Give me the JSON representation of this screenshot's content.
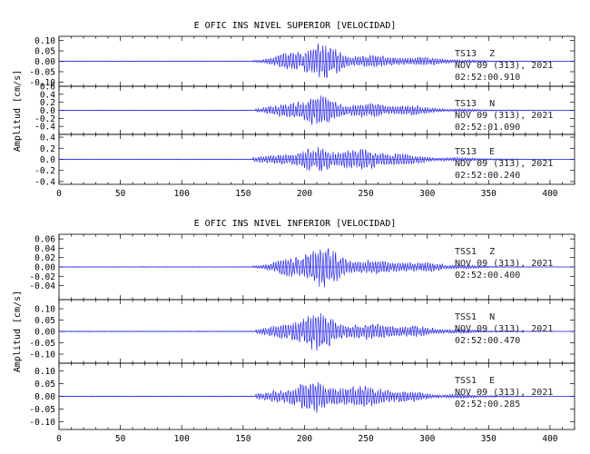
{
  "chart_data": [
    {
      "type": "line",
      "title": "E OFIC INS NIVEL SUPERIOR [VELOCIDAD]",
      "ylabel": "Amplitud [cm/s]",
      "xlabel": "",
      "xlim": [
        0,
        420
      ],
      "xticks": [
        "0",
        "50",
        "100",
        "150",
        "200",
        "250",
        "300",
        "350",
        "400"
      ],
      "grid": false,
      "color": "#1414e6",
      "panels": [
        {
          "name": "TS13 Z",
          "station": "TS13",
          "component": "Z",
          "date": "NOV 09 (313), 2021",
          "time": "02:52:00.910",
          "ylim": [
            -0.12,
            0.12
          ],
          "yticks": [
            "0.10",
            "0.05",
            "0.00",
            "-0.05",
            "-0.10"
          ],
          "onset": 158,
          "peak_x": 210,
          "peak_amp": 0.11
        },
        {
          "name": "TS13 N",
          "station": "TS13",
          "component": "N",
          "date": "NOV 09 (313), 2021",
          "time": "02:52:01.090",
          "ylim": [
            -0.6,
            0.6
          ],
          "yticks": [
            "0.6",
            "0.4",
            "0.2",
            "0.0",
            "-0.2",
            "-0.4"
          ],
          "onset": 160,
          "peak_x": 210,
          "peak_amp": 0.55
        },
        {
          "name": "TS13 E",
          "station": "TS13",
          "component": "E",
          "date": "NOV 09 (313), 2021",
          "time": "02:52:00.240",
          "ylim": [
            -0.45,
            0.45
          ],
          "yticks": [
            "0.4",
            "0.2",
            "0.0",
            "-0.2",
            "-0.4"
          ],
          "onset": 158,
          "peak_x": 215,
          "peak_amp": 0.42
        }
      ]
    },
    {
      "type": "line",
      "title": "E OFIC INS NIVEL INFERIOR [VELOCIDAD]",
      "ylabel": "Amplitud [cm/s]",
      "xlabel": "",
      "xlim": [
        0,
        420
      ],
      "xticks": [
        "0",
        "50",
        "100",
        "150",
        "200",
        "250",
        "300",
        "350",
        "400"
      ],
      "grid": false,
      "color": "#1414e6",
      "panels": [
        {
          "name": "TSS1 Z",
          "station": "TSS1",
          "component": "Z",
          "date": "NOV 09 (313), 2021",
          "time": "02:52:00.400",
          "ylim": [
            -0.07,
            0.07
          ],
          "yticks": [
            "0.06",
            "0.04",
            "0.02",
            "0.00",
            "-0.02",
            "-0.04"
          ],
          "onset": 158,
          "peak_x": 212,
          "peak_amp": 0.055
        },
        {
          "name": "TSS1 N",
          "station": "TSS1",
          "component": "N",
          "date": "NOV 09 (313), 2021",
          "time": "02:52:00.470",
          "ylim": [
            -0.14,
            0.14
          ],
          "yticks": [
            "0.10",
            "0.05",
            "0.00",
            "-0.05",
            "-0.10"
          ],
          "onset": 160,
          "peak_x": 210,
          "peak_amp": 0.12
        },
        {
          "name": "TSS1 E",
          "station": "TSS1",
          "component": "E",
          "date": "NOV 09 (313), 2021",
          "time": "02:52:00.285",
          "ylim": [
            -0.13,
            0.13
          ],
          "yticks": [
            "0.10",
            "0.05",
            "0.00",
            "-0.05",
            "-0.10"
          ],
          "onset": 160,
          "peak_x": 208,
          "peak_amp": 0.11
        }
      ]
    }
  ]
}
